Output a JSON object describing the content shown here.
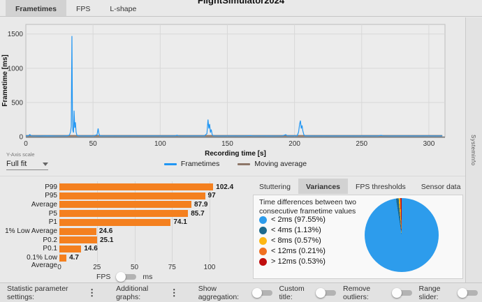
{
  "window": {
    "title": "FlightSimulator2024"
  },
  "tabs_top": [
    {
      "label": "Frametimes",
      "active": true
    },
    {
      "label": "FPS",
      "active": false
    },
    {
      "label": "L-shape",
      "active": false
    }
  ],
  "y_axis_scale": {
    "label": "Y-Axis scale",
    "value": "Full fit"
  },
  "legend": [
    {
      "label": "Frametimes",
      "color": "#2196f3"
    },
    {
      "label": "Moving average",
      "color": "#8d7668"
    }
  ],
  "right_tabs": [
    {
      "label": "Stuttering",
      "active": false
    },
    {
      "label": "Variances",
      "active": true
    },
    {
      "label": "FPS thresholds",
      "active": false
    },
    {
      "label": "Sensor data",
      "active": false
    }
  ],
  "variance_panel": {
    "description_line1": "Time differences between two",
    "description_line2": "consecutive frametime values"
  },
  "side_panel": {
    "label": "Systeminfo"
  },
  "fps_ms_toggle": {
    "left": "FPS",
    "right": "ms",
    "on": false
  },
  "bottom_bar": {
    "statistic_label": "Statistic parameter settings:",
    "graphs_label": "Additional graphs:",
    "toggles": [
      {
        "label": "Show aggregation:",
        "on": false
      },
      {
        "label": "Custom title:",
        "on": false
      },
      {
        "label": "Remove outliers:",
        "on": false
      },
      {
        "label": "Range slider:",
        "on": false
      }
    ]
  },
  "chart_data": [
    {
      "id": "frametimes",
      "type": "line",
      "xlabel": "Recording time [s]",
      "ylabel": "Frametime [ms]",
      "xlim": [
        0,
        312
      ],
      "ylim": [
        0,
        1640
      ],
      "xticks": [
        0,
        50,
        100,
        150,
        200,
        250,
        300
      ],
      "yticks": [
        0,
        500,
        1000,
        1500
      ],
      "grid": true,
      "legend_position": "bottom",
      "series": [
        {
          "name": "Frametimes",
          "color": "#2196f3",
          "points": [
            [
              0,
              12
            ],
            [
              2,
              14
            ],
            [
              3,
              32
            ],
            [
              4,
              12
            ],
            [
              10,
              10
            ],
            [
              16,
              13
            ],
            [
              22,
              11
            ],
            [
              28,
              12
            ],
            [
              31,
              14
            ],
            [
              32.5,
              25
            ],
            [
              33.3,
              70
            ],
            [
              33.8,
              150
            ],
            [
              34.3,
              1470
            ],
            [
              34.7,
              250
            ],
            [
              35,
              90
            ],
            [
              35.5,
              60
            ],
            [
              35.9,
              380
            ],
            [
              36.4,
              130
            ],
            [
              36.9,
              210
            ],
            [
              37.4,
              70
            ],
            [
              38,
              22
            ],
            [
              39,
              13
            ],
            [
              42,
              11
            ],
            [
              46,
              12
            ],
            [
              50,
              11
            ],
            [
              53,
              28
            ],
            [
              53.8,
              120
            ],
            [
              54.4,
              45
            ],
            [
              55,
              14
            ],
            [
              58,
              11
            ],
            [
              64,
              12
            ],
            [
              72,
              11
            ],
            [
              80,
              12
            ],
            [
              88,
              11
            ],
            [
              96,
              12
            ],
            [
              104,
              11
            ],
            [
              111.5,
              13
            ],
            [
              112.5,
              22
            ],
            [
              113.5,
              12
            ],
            [
              118,
              11
            ],
            [
              126,
              12
            ],
            [
              133,
              13
            ],
            [
              134.8,
              45
            ],
            [
              135.6,
              250
            ],
            [
              136.2,
              120
            ],
            [
              136.8,
              185
            ],
            [
              137.4,
              60
            ],
            [
              138,
              105
            ],
            [
              138.8,
              24
            ],
            [
              140,
              12
            ],
            [
              146,
              11
            ],
            [
              154,
              12
            ],
            [
              162,
              11
            ],
            [
              167.5,
              16
            ],
            [
              169,
              11
            ],
            [
              176,
              12
            ],
            [
              184,
              11
            ],
            [
              191,
              12
            ],
            [
              193.5,
              30
            ],
            [
              194.5,
              13
            ],
            [
              198,
              12
            ],
            [
              202,
              14
            ],
            [
              203,
              65
            ],
            [
              203.8,
              185
            ],
            [
              204.4,
              235
            ],
            [
              205,
              120
            ],
            [
              205.6,
              165
            ],
            [
              206.2,
              85
            ],
            [
              207,
              26
            ],
            [
              208,
              13
            ],
            [
              214,
              11
            ],
            [
              222,
              12
            ],
            [
              230,
              11
            ],
            [
              238,
              12
            ],
            [
              246,
              11
            ],
            [
              254,
              12
            ],
            [
              262,
              11
            ],
            [
              264.5,
              20
            ],
            [
              266,
              12
            ],
            [
              274,
              11
            ],
            [
              282,
              12
            ],
            [
              290,
              11
            ],
            [
              298,
              12
            ],
            [
              306,
              11
            ],
            [
              310,
              12
            ]
          ]
        },
        {
          "name": "Moving average",
          "color": "#8d7668",
          "points": [
            [
              0,
              14
            ],
            [
              310,
              14
            ]
          ]
        }
      ]
    },
    {
      "id": "fps_percentiles",
      "type": "bar",
      "orientation": "horizontal",
      "categories": [
        "P99",
        "P95",
        "Average",
        "P5",
        "P1",
        "1% Low Average",
        "P0.2",
        "P0.1",
        "0.1% Low Average"
      ],
      "values": [
        102.4,
        97,
        87.9,
        85.7,
        74.1,
        24.6,
        25.1,
        14.6,
        4.7
      ],
      "xticks": [
        0,
        25,
        50,
        75,
        100
      ],
      "xlim": [
        0,
        125
      ],
      "unit": "FPS",
      "bar_color": "#f4801f"
    },
    {
      "id": "variances",
      "type": "pie",
      "title": "Time differences between two consecutive frametime values",
      "slices": [
        {
          "label": "< 2ms (97.55%)",
          "value": 97.55,
          "color": "#2d9cec"
        },
        {
          "label": "< 4ms (1.13%)",
          "value": 1.13,
          "color": "#1d6a8d"
        },
        {
          "label": "< 8ms (0.57%)",
          "value": 0.57,
          "color": "#fdb714"
        },
        {
          "label": "< 12ms (0.21%)",
          "value": 0.21,
          "color": "#f07021"
        },
        {
          "label": "> 12ms (0.53%)",
          "value": 0.53,
          "color": "#c00d0d"
        }
      ],
      "legend_position": "left"
    }
  ]
}
